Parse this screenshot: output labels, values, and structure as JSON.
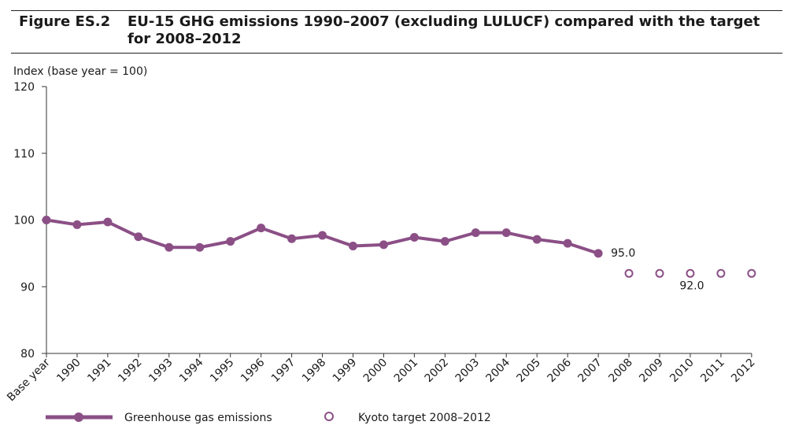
{
  "figure": {
    "label": "Figure ES.2",
    "title": "EU-15 GHG emissions 1990–2007 (excluding LULUCF) compared with the target for 2008–2012"
  },
  "chart_data": {
    "type": "line",
    "ylabel": "Index (base year = 100)",
    "xlabel": "",
    "ylim": [
      80,
      120
    ],
    "yticks": [
      80,
      90,
      100,
      110,
      120
    ],
    "categories": [
      "Base year",
      "1990",
      "1991",
      "1992",
      "1993",
      "1994",
      "1995",
      "1996",
      "1997",
      "1998",
      "1999",
      "2000",
      "2001",
      "2002",
      "2003",
      "2004",
      "2005",
      "2006",
      "2007",
      "2008",
      "2009",
      "2010",
      "2011",
      "2012"
    ],
    "series": [
      {
        "name": "Greenhouse gas emissions",
        "style": "line-with-filled-markers",
        "color": "#8b4f86",
        "points": [
          {
            "x": "Base year",
            "y": 100.0
          },
          {
            "x": "1990",
            "y": 99.3
          },
          {
            "x": "1991",
            "y": 99.7
          },
          {
            "x": "1992",
            "y": 97.5
          },
          {
            "x": "1993",
            "y": 95.9
          },
          {
            "x": "1994",
            "y": 95.9
          },
          {
            "x": "1995",
            "y": 96.8
          },
          {
            "x": "1996",
            "y": 98.8
          },
          {
            "x": "1997",
            "y": 97.2
          },
          {
            "x": "1998",
            "y": 97.7
          },
          {
            "x": "1999",
            "y": 96.1
          },
          {
            "x": "2000",
            "y": 96.3
          },
          {
            "x": "2001",
            "y": 97.4
          },
          {
            "x": "2002",
            "y": 96.8
          },
          {
            "x": "2003",
            "y": 98.1
          },
          {
            "x": "2004",
            "y": 98.1
          },
          {
            "x": "2005",
            "y": 97.1
          },
          {
            "x": "2006",
            "y": 96.5
          },
          {
            "x": "2007",
            "y": 95.0
          }
        ]
      },
      {
        "name": "Kyoto target 2008–2012",
        "style": "open-markers",
        "color": "#8b4f86",
        "points": [
          {
            "x": "2008",
            "y": 92.0
          },
          {
            "x": "2009",
            "y": 92.0
          },
          {
            "x": "2010",
            "y": 92.0
          },
          {
            "x": "2011",
            "y": 92.0
          },
          {
            "x": "2012",
            "y": 92.0
          }
        ]
      }
    ],
    "annotations": [
      {
        "text": "95.0",
        "x": "2007",
        "y": 95.0
      },
      {
        "text": "92.0",
        "x": "2010",
        "y": 92.0
      }
    ],
    "legend": {
      "position": "bottom",
      "items": [
        "Greenhouse gas emissions",
        "Kyoto target 2008–2012"
      ]
    },
    "grid": false
  }
}
